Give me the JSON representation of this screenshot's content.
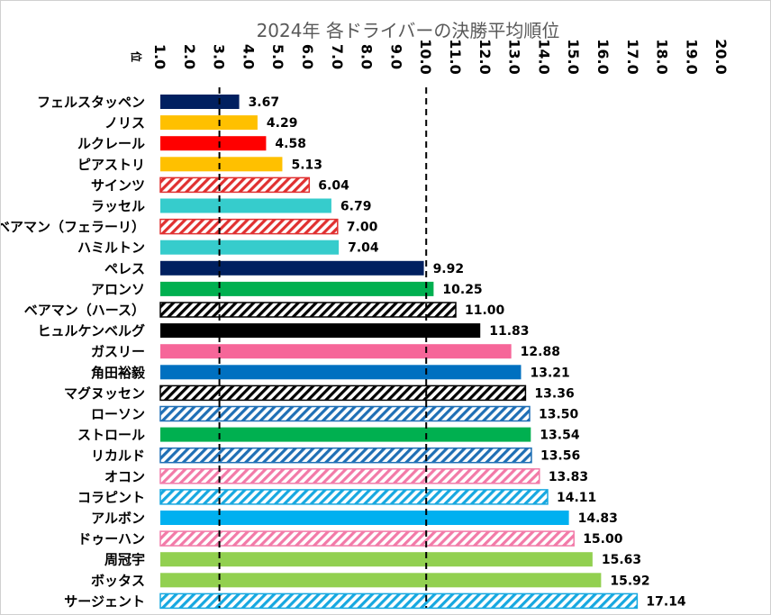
{
  "chart_data": {
    "type": "bar",
    "orientation": "horizontal",
    "title": "2024年 各ドライバーの決勝平均順位",
    "unit_label": "位",
    "xlim": [
      1.0,
      20.0
    ],
    "x_ticks": [
      "1.0",
      "2.0",
      "3.0",
      "4.0",
      "5.0",
      "6.0",
      "7.0",
      "8.0",
      "9.0",
      "10.0",
      "11.0",
      "12.0",
      "13.0",
      "14.0",
      "15.0",
      "16.0",
      "17.0",
      "18.0",
      "19.0",
      "20.0"
    ],
    "x_axis_position": "top",
    "gridlines": false,
    "reference_lines": [
      3.0,
      10.0
    ],
    "legend": "none",
    "categories": [
      "フェルスタッペン",
      "ノリス",
      "ルクレール",
      "ピアストリ",
      "サインツ",
      "ラッセル",
      "ベアマン（フェラーリ）",
      "ハミルトン",
      "ペレス",
      "アロンソ",
      "ベアマン（ハース）",
      "ヒュルケンベルグ",
      "ガスリー",
      "角田裕毅",
      "マグヌッセン",
      "ローソン",
      "ストロール",
      "リカルド",
      "オコン",
      "コラピント",
      "アルボン",
      "ドゥーハン",
      "周冠宇",
      "ボッタス",
      "サージェント"
    ],
    "values": [
      3.67,
      4.29,
      4.58,
      5.13,
      6.04,
      6.79,
      7.0,
      7.04,
      9.92,
      10.25,
      11.0,
      11.83,
      12.88,
      13.21,
      13.36,
      13.5,
      13.54,
      13.56,
      13.83,
      14.11,
      14.83,
      15.0,
      15.63,
      15.92,
      17.14
    ],
    "value_labels": [
      "3.67",
      "4.29",
      "4.58",
      "5.13",
      "6.04",
      "6.79",
      "7.00",
      "7.04",
      "9.92",
      "10.25",
      "11.00",
      "11.83",
      "12.88",
      "13.21",
      "13.36",
      "13.50",
      "13.54",
      "13.56",
      "13.83",
      "14.11",
      "14.83",
      "15.00",
      "15.63",
      "15.92",
      "17.14"
    ],
    "bar_colors": [
      "#002060",
      "#FFC000",
      "#FF0000",
      "#FFC000",
      "#E03030",
      "#36CCCC",
      "#E03030",
      "#36CCCC",
      "#002060",
      "#00B050",
      "#000000",
      "#000000",
      "#F66699",
      "#0070C0",
      "#000000",
      "#1F6FB5",
      "#00B050",
      "#1F6FB5",
      "#F27AA8",
      "#17A8E0",
      "#00B0F0",
      "#F27AA8",
      "#92D050",
      "#92D050",
      "#17A8E0"
    ],
    "bar_patterns": [
      "solid",
      "solid",
      "solid",
      "solid",
      "hatched",
      "solid",
      "hatched",
      "solid",
      "solid",
      "solid",
      "hatched",
      "solid",
      "solid",
      "solid",
      "hatched",
      "hatched",
      "solid",
      "hatched",
      "hatched",
      "hatched",
      "solid",
      "hatched",
      "solid",
      "solid",
      "hatched"
    ]
  }
}
